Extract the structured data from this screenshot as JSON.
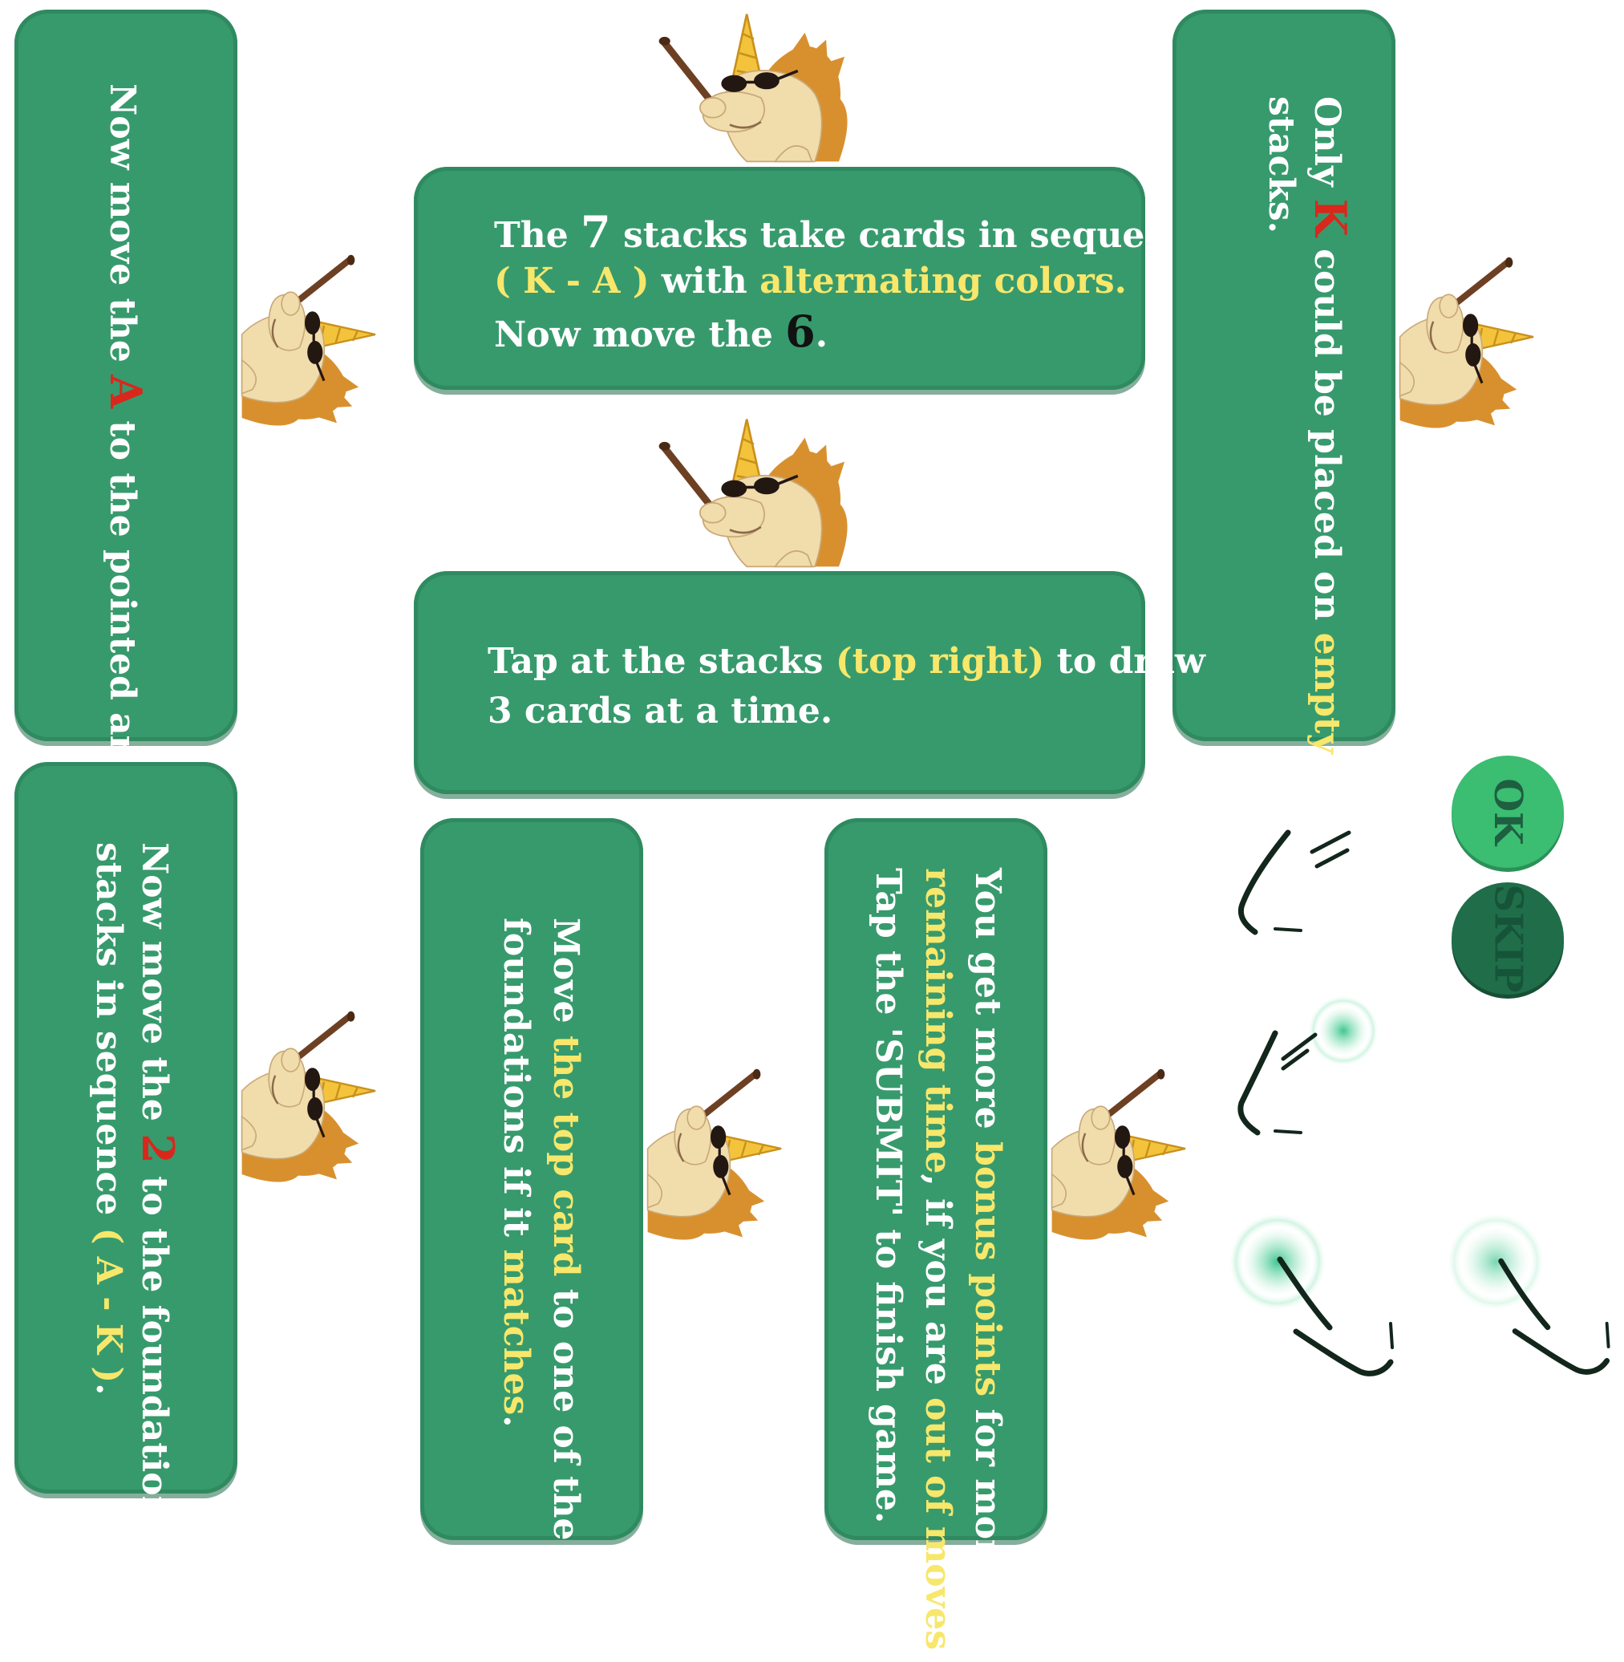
{
  "panels": {
    "p1": {
      "t1": "Now move the ",
      "t2": "A",
      "t3": " to the pointed area."
    },
    "p2": {
      "l1a": "The ",
      "l1b": "7",
      "l1c": " stacks take cards in sequence",
      "l2a": "( K - A )",
      "l2b": " with ",
      "l2c": "alternating colors.",
      "l3a": "Now move the ",
      "l3b": "6",
      "l3c": "."
    },
    "p3": {
      "l1a": "Only ",
      "l1b": "K",
      "l1c": " could be placed on ",
      "l1d": "empty",
      "l2": "stacks."
    },
    "p4": {
      "l1a": "Tap at the stacks ",
      "l1b": "(top right)",
      "l1c": " to draw",
      "l2": "3 cards at a time."
    },
    "p5": {
      "l1a": "Now move the ",
      "l1b": "2",
      "l1c": " to the foundation",
      "l2a": "stacks in sequence ",
      "l2b": "( A - K )",
      "l2c": "."
    },
    "p6": {
      "l1a": "Move ",
      "l1b": "the top card",
      "l1c": " to one of the",
      "l2a": "foundations if it ",
      "l2b": "matches",
      "l2c": "."
    },
    "p7": {
      "l1a": "You get more ",
      "l1b": "bonus points",
      "l1c": " for more",
      "l2a": "remaining time",
      "l2b": ", if you are ",
      "l2c": "out of moves",
      "l2d": ",",
      "l3": "Tap the 'SUBMIT' to finish game."
    }
  },
  "buttons": {
    "ok": "OK",
    "skip": "SKIP"
  },
  "colors": {
    "panel": "#379a6d",
    "highlight": "#f7e76b",
    "red": "#d9271c",
    "ok_button": "#3bbd72",
    "skip_button": "#1f6e49"
  }
}
